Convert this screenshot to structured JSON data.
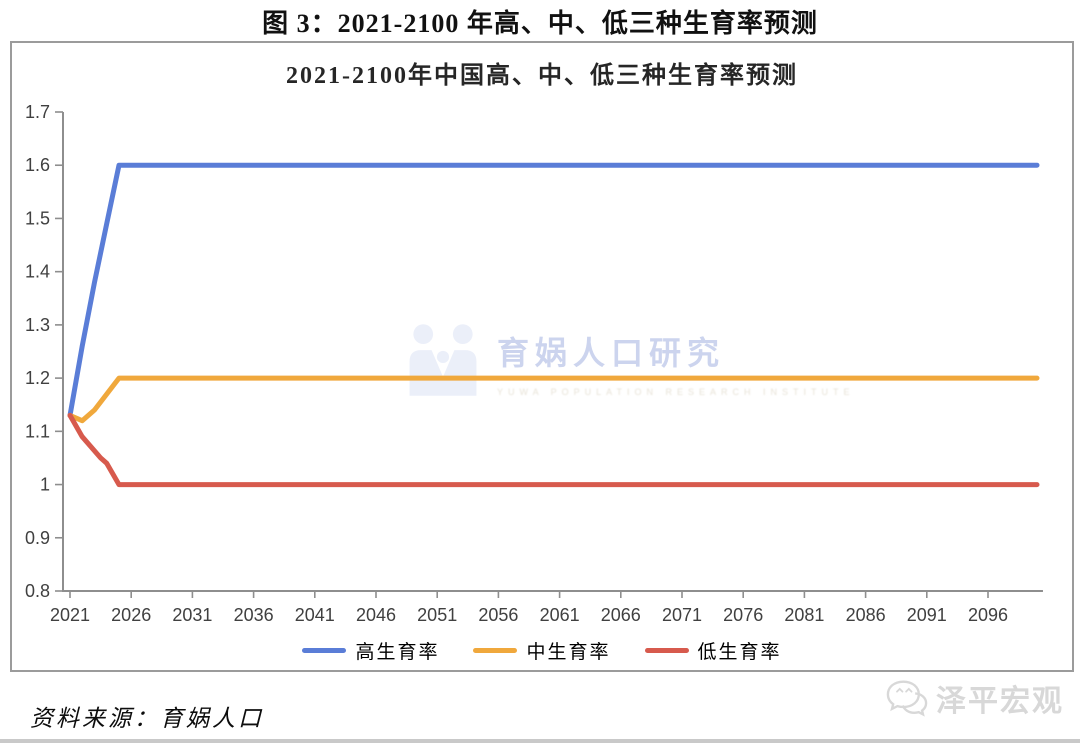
{
  "figure": {
    "title": "图 3：2021-2100 年高、中、低三种生育率预测"
  },
  "chart_data": {
    "type": "line",
    "title": "2021-2100年中国高、中、低三种生育率预测",
    "xlabel": "",
    "ylabel": "",
    "x_range": [
      2021,
      2100
    ],
    "y_range": [
      0.8,
      1.7
    ],
    "x_ticks": [
      2021,
      2026,
      2031,
      2036,
      2041,
      2046,
      2051,
      2056,
      2061,
      2066,
      2071,
      2076,
      2081,
      2086,
      2091,
      2096
    ],
    "y_ticks": [
      1.7,
      1.6,
      1.5,
      1.4,
      1.3,
      1.2,
      1.1,
      1,
      0.9,
      0.8
    ],
    "grid": false,
    "legend_position": "bottom",
    "axis_color": "#8e8e8e",
    "tick_label_color": "#404040",
    "series": [
      {
        "key": "high",
        "name": "高生育率",
        "color": "#5a7dd7",
        "points": [
          [
            2021,
            1.13
          ],
          [
            2022,
            1.26
          ],
          [
            2023,
            1.38
          ],
          [
            2024,
            1.49
          ],
          [
            2025,
            1.6
          ],
          [
            2100,
            1.6
          ]
        ]
      },
      {
        "key": "mid",
        "name": "中生育率",
        "color": "#f0a83c",
        "points": [
          [
            2021,
            1.13
          ],
          [
            2022,
            1.12
          ],
          [
            2023,
            1.14
          ],
          [
            2024,
            1.17
          ],
          [
            2025,
            1.2
          ],
          [
            2100,
            1.2
          ]
        ]
      },
      {
        "key": "low",
        "name": "低生育率",
        "color": "#d75a4d",
        "points": [
          [
            2021,
            1.13
          ],
          [
            2022,
            1.09
          ],
          [
            2023.5,
            1.05
          ],
          [
            2024,
            1.04
          ],
          [
            2025,
            1.0
          ],
          [
            2100,
            1.0
          ]
        ]
      }
    ]
  },
  "watermark": {
    "text": "育娲人口研究",
    "subtext": "YUWA POPULATION RESEARCH INSTITUTE"
  },
  "footer": {
    "source": "资料来源：育娲人口",
    "brand": "泽平宏观"
  }
}
